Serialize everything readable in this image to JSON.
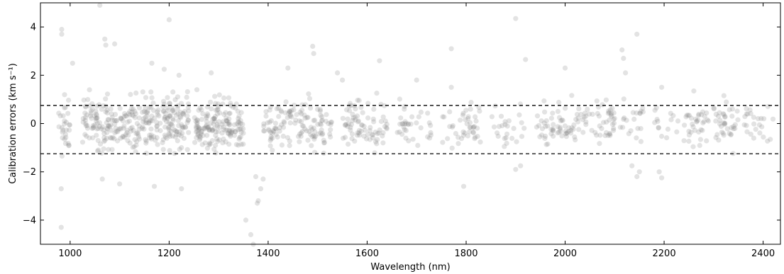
{
  "chart_data": {
    "type": "scatter",
    "title": "",
    "xlabel": "Wavelength (nm)",
    "ylabel": "Calibration errors (km s⁻¹)",
    "xlim": [
      940,
      2435
    ],
    "ylim": [
      -5,
      5
    ],
    "xticks": [
      1000,
      1200,
      1400,
      1600,
      1800,
      2000,
      2200,
      2400
    ],
    "xtick_labels": [
      "1000",
      "1200",
      "1400",
      "1600",
      "1800",
      "2000",
      "2200",
      "2400"
    ],
    "yticks": [
      -4,
      -2,
      0,
      2,
      4
    ],
    "ytick_labels": [
      "−4",
      "−2",
      "0",
      "2",
      "4"
    ],
    "hlines": [
      0.75,
      -1.25
    ],
    "grid": false,
    "legend": "none",
    "point_color": "#808080",
    "line_color": "#000000",
    "clusters": [
      {
        "x_range": [
          975,
          1000
        ],
        "count": 28,
        "y_center": 0.0,
        "y_spread": 0.6
      },
      {
        "x_range": [
          1025,
          1140
        ],
        "count": 160,
        "y_center": 0.0,
        "y_spread": 0.55
      },
      {
        "x_range": [
          1145,
          1240
        ],
        "count": 150,
        "y_center": 0.0,
        "y_spread": 0.55
      },
      {
        "x_range": [
          1250,
          1300
        ],
        "count": 90,
        "y_center": 0.0,
        "y_spread": 0.55
      },
      {
        "x_range": [
          1300,
          1350
        ],
        "count": 75,
        "y_center": 0.0,
        "y_spread": 0.5
      },
      {
        "x_range": [
          1390,
          1470
        ],
        "count": 75,
        "y_center": 0.0,
        "y_spread": 0.5
      },
      {
        "x_range": [
          1470,
          1530
        ],
        "count": 55,
        "y_center": 0.0,
        "y_spread": 0.5
      },
      {
        "x_range": [
          1550,
          1640
        ],
        "count": 80,
        "y_center": -0.1,
        "y_spread": 0.5
      },
      {
        "x_range": [
          1660,
          1740
        ],
        "count": 35,
        "y_center": 0.0,
        "y_spread": 0.45
      },
      {
        "x_range": [
          1750,
          1830
        ],
        "count": 45,
        "y_center": 0.0,
        "y_spread": 0.45
      },
      {
        "x_range": [
          1850,
          1920
        ],
        "count": 25,
        "y_center": 0.0,
        "y_spread": 0.4
      },
      {
        "x_range": [
          1940,
          2000
        ],
        "count": 40,
        "y_center": 0.0,
        "y_spread": 0.4
      },
      {
        "x_range": [
          2000,
          2100
        ],
        "count": 70,
        "y_center": 0.0,
        "y_spread": 0.45
      },
      {
        "x_range": [
          2110,
          2160
        ],
        "count": 20,
        "y_center": 0.0,
        "y_spread": 0.45
      },
      {
        "x_range": [
          2180,
          2230
        ],
        "count": 15,
        "y_center": 0.0,
        "y_spread": 0.4
      },
      {
        "x_range": [
          2240,
          2290
        ],
        "count": 35,
        "y_center": 0.0,
        "y_spread": 0.4
      },
      {
        "x_range": [
          2300,
          2350
        ],
        "count": 40,
        "y_center": 0.0,
        "y_spread": 0.45
      },
      {
        "x_range": [
          2360,
          2420
        ],
        "count": 25,
        "y_center": 0.0,
        "y_spread": 0.4
      }
    ],
    "outliers": [
      [
        983,
        3.9
      ],
      [
        983,
        3.7
      ],
      [
        982,
        -2.7
      ],
      [
        982,
        -4.3
      ],
      [
        1005,
        2.5
      ],
      [
        1060,
        4.9
      ],
      [
        1070,
        3.5
      ],
      [
        1072,
        3.25
      ],
      [
        1090,
        3.3
      ],
      [
        1165,
        2.5
      ],
      [
        1200,
        4.3
      ],
      [
        1190,
        2.25
      ],
      [
        1220,
        2.0
      ],
      [
        1285,
        2.1
      ],
      [
        1065,
        -2.3
      ],
      [
        1100,
        -2.5
      ],
      [
        1170,
        -2.6
      ],
      [
        1225,
        -2.7
      ],
      [
        1375,
        -2.2
      ],
      [
        1385,
        -2.7
      ],
      [
        1390,
        -2.3
      ],
      [
        1380,
        -3.2
      ],
      [
        1378,
        -3.3
      ],
      [
        1355,
        -4.0
      ],
      [
        1365,
        -4.6
      ],
      [
        1370,
        -5.0
      ],
      [
        1440,
        2.3
      ],
      [
        1490,
        3.2
      ],
      [
        1492,
        2.9
      ],
      [
        1540,
        2.1
      ],
      [
        1625,
        2.6
      ],
      [
        1700,
        1.8
      ],
      [
        1770,
        3.1
      ],
      [
        1795,
        -2.6
      ],
      [
        1900,
        4.35
      ],
      [
        1920,
        2.65
      ],
      [
        2000,
        2.3
      ],
      [
        2115,
        3.05
      ],
      [
        2118,
        2.7
      ],
      [
        2122,
        2.1
      ],
      [
        2145,
        3.7
      ],
      [
        2135,
        -1.75
      ],
      [
        2150,
        -2.0
      ],
      [
        2145,
        -2.2
      ],
      [
        2190,
        -2.0
      ],
      [
        2195,
        -2.25
      ],
      [
        2195,
        1.5
      ],
      [
        2260,
        1.35
      ],
      [
        1900,
        -1.9
      ],
      [
        1910,
        -1.75
      ],
      [
        1770,
        1.5
      ],
      [
        1550,
        1.8
      ]
    ]
  }
}
